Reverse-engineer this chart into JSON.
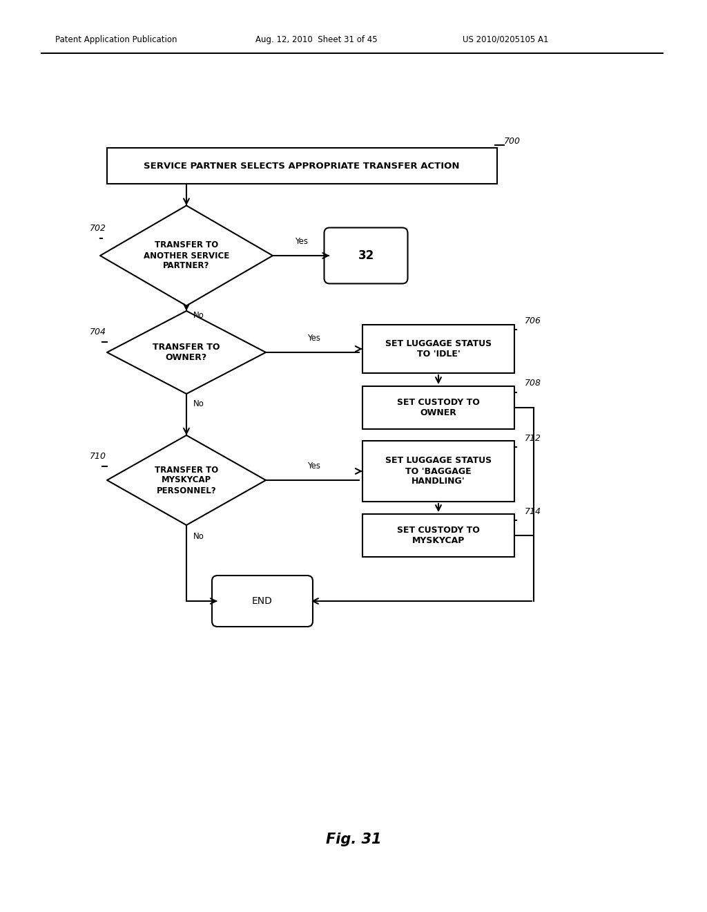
{
  "bg_color": "#ffffff",
  "header_left": "Patent Application Publication",
  "header_mid": "Aug. 12, 2010  Sheet 31 of 45",
  "header_right": "US 2010/0205105 A1",
  "fig_label": "Fig. 31",
  "title": "SERVICE PARTNER SELECTS APPROPRIATE TRANSFER ACTION",
  "label_700": "700",
  "label_702": "702",
  "label_704": "704",
  "label_706": "706",
  "label_708": "708",
  "label_710": "710",
  "label_712": "712",
  "label_714": "714",
  "diamond1_text": "TRANSFER TO\nANOTHER SERVICE\nPARTNER?",
  "diamond2_text": "TRANSFER TO\nOWNER?",
  "diamond3_text": "TRANSFER TO\nMYSKYCAP\nPERSONNEL?",
  "box706_text": "SET LUGGAGE STATUS\nTO 'IDLE'",
  "box708_text": "SET CUSTODY TO\nOWNER",
  "box712_text": "SET LUGGAGE STATUS\nTO 'BAGGAGE\nHANDLING'",
  "box714_text": "SET CUSTODY TO\nMYSKYCAP",
  "oval32_text": "32",
  "end_text": "END",
  "lc": "#000000",
  "tc": "#000000",
  "bf": "#ffffff",
  "be": "#000000"
}
